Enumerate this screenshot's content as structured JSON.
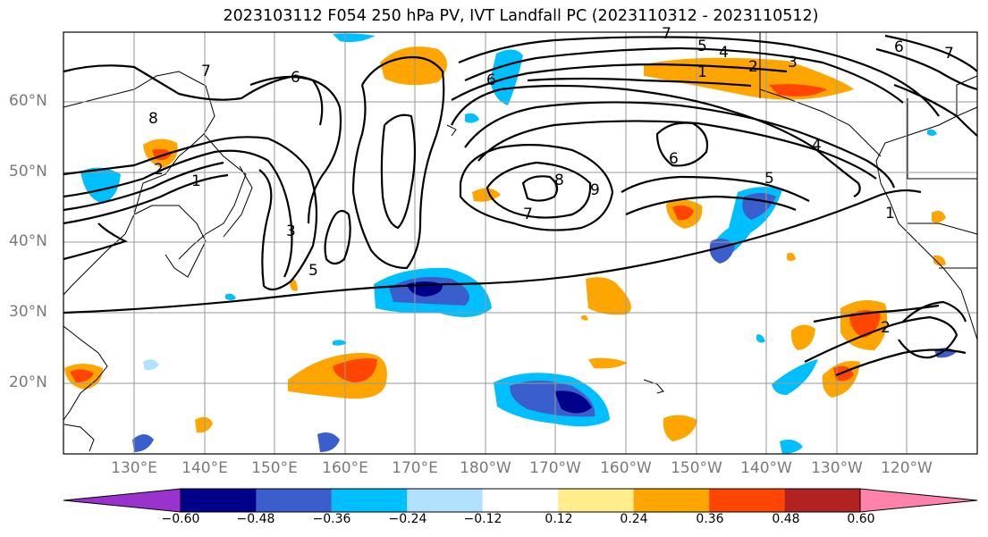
{
  "title": "2023103112 F054 250 hPa PV, IVT Landfall PC (2023110312 - 2023110512)",
  "lat_labels": [
    "60°N",
    "50°N",
    "40°N",
    "30°N",
    "20°N"
  ],
  "lon_labels": [
    "130°E",
    "140°E",
    "150°E",
    "160°E",
    "170°E",
    "180°W",
    "170°W",
    "160°W",
    "150°W",
    "140°W",
    "130°W",
    "120°W"
  ],
  "colorbar": {
    "ticks": [
      "−0.60",
      "−0.48",
      "−0.36",
      "−0.24",
      "−0.12",
      "0.12",
      "0.24",
      "0.36",
      "0.48",
      "0.60"
    ],
    "colors": [
      "#9a32cd",
      "#00008b",
      "#3a5fcd",
      "#00bfff",
      "#b0e2ff",
      "#ffffff",
      "#ffec8b",
      "#ffa500",
      "#ff4500",
      "#b22222",
      "#ff82ab"
    ]
  },
  "contour_labels": [
    "7",
    "8",
    "6",
    "7",
    "5",
    "4",
    "1",
    "2",
    "3",
    "6",
    "7",
    "1",
    "4",
    "6",
    "6",
    "8",
    "9",
    "7",
    "5",
    "1",
    "3",
    "5",
    "2",
    "2"
  ]
}
